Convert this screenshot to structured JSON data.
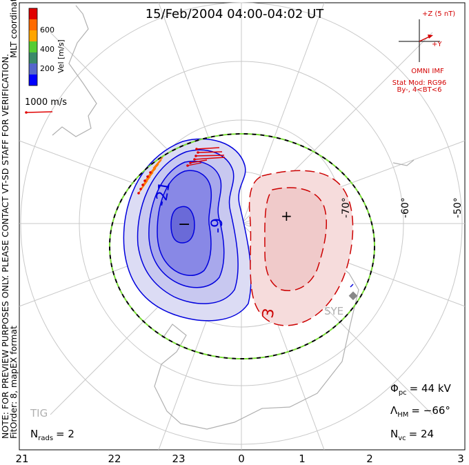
{
  "title": "15/Feb/2004 04:00-04:02 UT",
  "side_note_line1": "NOTE: FOR PREVIEW PURPOSES ONLY. PLEASE CONTACT VT-SD STAFF FOR VERIFICATION.",
  "side_note_line2": "FitOrder: 8, mapEX format",
  "coord_label": "MLT coordinates",
  "colorbar": {
    "label": "Vel [m/s]",
    "ticks": [
      "600",
      "400",
      "200"
    ],
    "colors": [
      "#e00000",
      "#ff6a00",
      "#ffa500",
      "#55cc33",
      "#3a8a6a",
      "#5566cc",
      "#0000ff"
    ]
  },
  "vector_scale": "1000 m/s",
  "imf": {
    "z_label": "+Z (5 nT)",
    "y_label": "+Y",
    "source": "OMNI IMF",
    "model": "Stat Mod: RG96",
    "condition": "By-, 4<BT<6"
  },
  "lat_labels": [
    "-70°",
    "-60°",
    "-50°"
  ],
  "contour_labels": [
    "-21",
    "-9",
    "3"
  ],
  "min_marker": "−",
  "max_marker": "+",
  "stations": [
    "SYE",
    "TIG"
  ],
  "potential": {
    "label": "Φ",
    "sub": "pc",
    "value": "= 44 kV"
  },
  "hm_boundary": {
    "label": "Λ",
    "sub": "HM",
    "value": "= −66°"
  },
  "nvc": {
    "label": "N",
    "sub": "vc",
    "value": "= 24"
  },
  "nrads": {
    "label": "N",
    "sub": "rads",
    "value": "= 2"
  },
  "mlt_labels": [
    "21",
    "22",
    "23",
    "0",
    "1",
    "2",
    "3"
  ],
  "colors": {
    "negative": "#0000dd",
    "positive": "#cc0000",
    "hmb": "#77dd33",
    "grid": "#c8c8c8",
    "coast": "#b0b0b0"
  }
}
